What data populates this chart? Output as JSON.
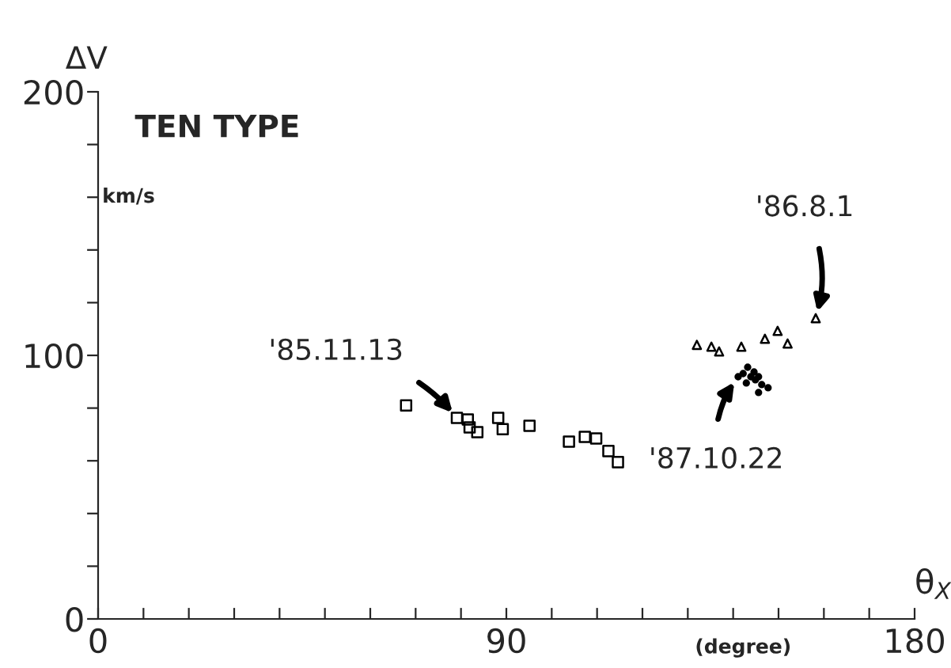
{
  "chart_data": {
    "type": "scatter",
    "title": "TEN TYPE",
    "ylabel": "ΔV",
    "xlabel": "θ$_{X}$",
    "xlim": [
      0,
      180
    ],
    "ylim": [
      0,
      200
    ],
    "xticks": [
      0,
      {
        "value": 10,
        "label": null
      },
      {
        "value": 20,
        "label": null
      },
      {
        "value": 30,
        "label": null
      },
      {
        "value": 40,
        "label": null
      },
      {
        "value": 50,
        "label": null
      },
      {
        "value": 60,
        "label": null
      },
      {
        "value": 70,
        "label": null
      },
      {
        "value": 80,
        "label": null
      },
      90,
      {
        "value": 100,
        "label": null
      },
      {
        "value": 110,
        "label": null
      },
      {
        "value": 120,
        "label": null
      },
      {
        "value": 130,
        "label": null
      },
      {
        "value": 140,
        "label": null
      },
      {
        "value": 150,
        "label": null
      },
      {
        "value": 160,
        "label": null
      },
      {
        "value": 170,
        "label": null
      },
      180
    ],
    "yticks": [
      0,
      {
        "value": 20,
        "label": null
      },
      {
        "value": 40,
        "label": null
      },
      {
        "value": 60,
        "label": null
      },
      {
        "value": 80,
        "label": null
      },
      100,
      {
        "value": 120,
        "label": null
      },
      {
        "value": 140,
        "label": null
      },
      {
        "value": 160,
        "label": null
      },
      {
        "value": 180,
        "label": null
      },
      200
    ],
    "grid": false,
    "legend": false,
    "series": [
      {
        "marker": "square",
        "color": "#000000",
        "x": [
          67.9,
          79.1,
          81.5,
          81.9,
          83.6,
          88.2,
          89.2,
          95.1,
          103.8,
          107.3,
          109.8,
          112.5,
          114.6
        ],
        "values": [
          81,
          76.3,
          75.7,
          72.7,
          70.9,
          76.3,
          72,
          73.3,
          67.3,
          69.1,
          68.5,
          63.7,
          59.5
        ]
      },
      {
        "marker": "triangle",
        "color": "#000000",
        "x": [
          132,
          135.2,
          136.9,
          141.8,
          147,
          149.8,
          152,
          158.2
        ],
        "values": [
          104,
          103.3,
          101.5,
          103.3,
          106.3,
          109.3,
          104.5,
          114.1
        ]
      },
      {
        "marker": "circle",
        "color": "#000000",
        "x": [
          141.1,
          142.2,
          143.2,
          143.9,
          144.6,
          144.9,
          145.6,
          146.3,
          145.6,
          147.7,
          142.9
        ],
        "values": [
          91.9,
          93.1,
          95.5,
          91.9,
          93.7,
          90.7,
          91.9,
          88.9,
          85.9,
          87.7,
          89.5
        ]
      }
    ],
    "annotations": [
      {
        "text": "'85.11.13",
        "x": 79.1,
        "y": 76.3
      },
      {
        "text": "'86.8.1",
        "x": 158.2,
        "y": 114.1
      },
      {
        "text": "'87.10.22",
        "x": 141.1,
        "y": 91.9
      },
      "km/s",
      "(degree)"
    ]
  }
}
